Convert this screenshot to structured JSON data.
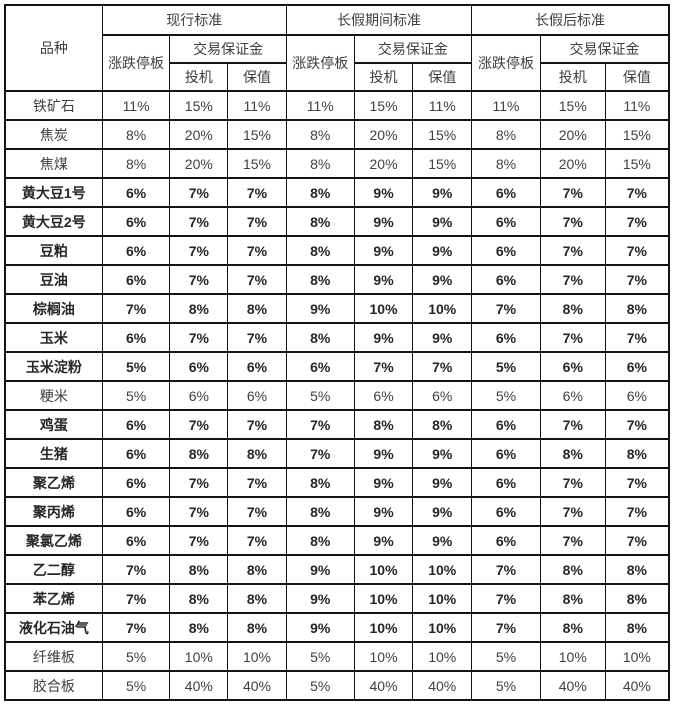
{
  "page": {
    "background": "#ffffff"
  },
  "table": {
    "border_color": "#141414",
    "text_color": "#3f3f3f",
    "bold_text_color": "#262626",
    "header": {
      "product": "品种",
      "sections": [
        {
          "title": "现行标准",
          "limit": "涨跌停板",
          "margin": "交易保证金",
          "spec": "投机",
          "hedge": "保值"
        },
        {
          "title": "长假期间标准",
          "limit": "涨跌停板",
          "margin": "交易保证金",
          "spec": "投机",
          "hedge": "保值"
        },
        {
          "title": "长假后标准",
          "limit": "涨跌停板",
          "margin": "交易保证金",
          "spec": "投机",
          "hedge": "保值"
        }
      ]
    },
    "rows": [
      {
        "name": "铁矿石",
        "bold": false,
        "values": [
          "11%",
          "15%",
          "11%",
          "11%",
          "15%",
          "11%",
          "11%",
          "15%",
          "11%"
        ]
      },
      {
        "name": "焦炭",
        "bold": false,
        "values": [
          "8%",
          "20%",
          "15%",
          "8%",
          "20%",
          "15%",
          "8%",
          "20%",
          "15%"
        ]
      },
      {
        "name": "焦煤",
        "bold": false,
        "values": [
          "8%",
          "20%",
          "15%",
          "8%",
          "20%",
          "15%",
          "8%",
          "20%",
          "15%"
        ]
      },
      {
        "name": "黄大豆1号",
        "bold": true,
        "values": [
          "6%",
          "7%",
          "7%",
          "8%",
          "9%",
          "9%",
          "6%",
          "7%",
          "7%"
        ]
      },
      {
        "name": "黄大豆2号",
        "bold": true,
        "values": [
          "6%",
          "7%",
          "7%",
          "8%",
          "9%",
          "9%",
          "6%",
          "7%",
          "7%"
        ]
      },
      {
        "name": "豆粕",
        "bold": true,
        "values": [
          "6%",
          "7%",
          "7%",
          "8%",
          "9%",
          "9%",
          "6%",
          "7%",
          "7%"
        ]
      },
      {
        "name": "豆油",
        "bold": true,
        "values": [
          "6%",
          "7%",
          "7%",
          "8%",
          "9%",
          "9%",
          "6%",
          "7%",
          "7%"
        ]
      },
      {
        "name": "棕榈油",
        "bold": true,
        "values": [
          "7%",
          "8%",
          "8%",
          "9%",
          "10%",
          "10%",
          "7%",
          "8%",
          "8%"
        ]
      },
      {
        "name": "玉米",
        "bold": true,
        "values": [
          "6%",
          "7%",
          "7%",
          "8%",
          "9%",
          "9%",
          "6%",
          "7%",
          "7%"
        ]
      },
      {
        "name": "玉米淀粉",
        "bold": true,
        "values": [
          "5%",
          "6%",
          "6%",
          "6%",
          "7%",
          "7%",
          "5%",
          "6%",
          "6%"
        ]
      },
      {
        "name": "粳米",
        "bold": false,
        "values": [
          "5%",
          "6%",
          "6%",
          "5%",
          "6%",
          "6%",
          "5%",
          "6%",
          "6%"
        ]
      },
      {
        "name": "鸡蛋",
        "bold": true,
        "values": [
          "6%",
          "7%",
          "7%",
          "7%",
          "8%",
          "8%",
          "6%",
          "7%",
          "7%"
        ]
      },
      {
        "name": "生猪",
        "bold": true,
        "values": [
          "6%",
          "8%",
          "8%",
          "7%",
          "9%",
          "9%",
          "6%",
          "8%",
          "8%"
        ]
      },
      {
        "name": "聚乙烯",
        "bold": true,
        "values": [
          "6%",
          "7%",
          "7%",
          "8%",
          "9%",
          "9%",
          "6%",
          "7%",
          "7%"
        ]
      },
      {
        "name": "聚丙烯",
        "bold": true,
        "values": [
          "6%",
          "7%",
          "7%",
          "8%",
          "9%",
          "9%",
          "6%",
          "7%",
          "7%"
        ]
      },
      {
        "name": "聚氯乙烯",
        "bold": true,
        "values": [
          "6%",
          "7%",
          "7%",
          "8%",
          "9%",
          "9%",
          "6%",
          "7%",
          "7%"
        ]
      },
      {
        "name": "乙二醇",
        "bold": true,
        "values": [
          "7%",
          "8%",
          "8%",
          "9%",
          "10%",
          "10%",
          "7%",
          "8%",
          "8%"
        ]
      },
      {
        "name": "苯乙烯",
        "bold": true,
        "values": [
          "7%",
          "8%",
          "8%",
          "9%",
          "10%",
          "10%",
          "7%",
          "8%",
          "8%"
        ]
      },
      {
        "name": "液化石油气",
        "bold": true,
        "values": [
          "7%",
          "8%",
          "8%",
          "9%",
          "10%",
          "10%",
          "7%",
          "8%",
          "8%"
        ]
      },
      {
        "name": "纤维板",
        "bold": false,
        "values": [
          "5%",
          "10%",
          "10%",
          "5%",
          "10%",
          "10%",
          "5%",
          "10%",
          "10%"
        ]
      },
      {
        "name": "胶合板",
        "bold": false,
        "values": [
          "5%",
          "40%",
          "40%",
          "5%",
          "40%",
          "40%",
          "5%",
          "40%",
          "40%"
        ]
      }
    ]
  }
}
